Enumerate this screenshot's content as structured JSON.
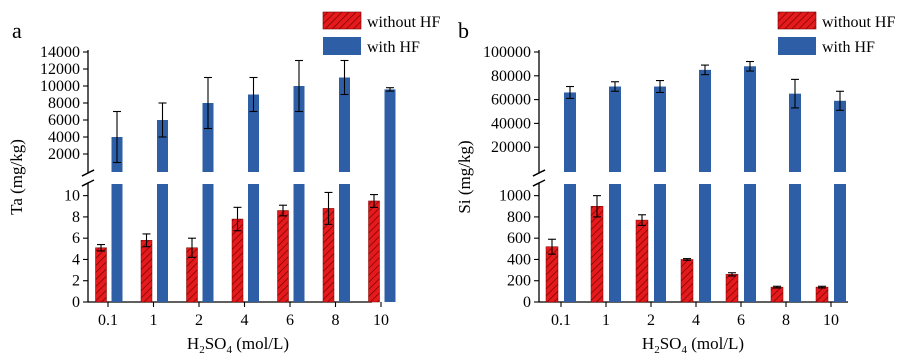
{
  "colors": {
    "with_hf": "#2e5fa6",
    "without_hf": "#e41a1c",
    "hatch": "#7a0000",
    "axis": "#000000"
  },
  "chart_data": [
    {
      "panel_label": "a",
      "type": "bar",
      "categories": [
        "0.1",
        "1",
        "2",
        "4",
        "6",
        "8",
        "10"
      ],
      "xlabel_parts": [
        "H",
        "2",
        "SO",
        "4",
        " (mol/L)"
      ],
      "ylabel": "Ta (mg/kg)",
      "legend_position": "top-right",
      "axis_break": true,
      "lower": {
        "ylim": [
          0,
          11
        ],
        "ticks": [
          "0",
          "2",
          "4",
          "6",
          "8",
          "10"
        ]
      },
      "upper": {
        "ylim": [
          0,
          14000
        ],
        "ticks": [
          "2000",
          "4000",
          "6000",
          "8000",
          "10000",
          "12000",
          "14000"
        ]
      },
      "series": [
        {
          "name": "without HF",
          "segment": "lower",
          "values": [
            5.1,
            5.8,
            5.1,
            7.8,
            8.6,
            8.8,
            9.5
          ],
          "errors": [
            0.3,
            0.6,
            0.9,
            1.1,
            0.5,
            1.5,
            0.6
          ]
        },
        {
          "name": "with HF",
          "segment": "upper",
          "values": [
            4000,
            6000,
            8000,
            9000,
            10000,
            11000,
            9600
          ],
          "errors": [
            3000,
            2000,
            3000,
            2000,
            3000,
            2000,
            200
          ]
        }
      ]
    },
    {
      "panel_label": "b",
      "type": "bar",
      "categories": [
        "0.1",
        "1",
        "2",
        "4",
        "6",
        "8",
        "10"
      ],
      "xlabel_parts": [
        "H",
        "2",
        "SO",
        "4",
        " (mol/L)"
      ],
      "ylabel": "Si (mg/kg)",
      "legend_position": "top-right",
      "axis_break": true,
      "lower": {
        "ylim": [
          0,
          1100
        ],
        "ticks": [
          "0",
          "200",
          "400",
          "600",
          "800",
          "1000"
        ]
      },
      "upper": {
        "ylim": [
          0,
          100000
        ],
        "ticks": [
          "20000",
          "40000",
          "60000",
          "80000",
          "100000"
        ]
      },
      "series": [
        {
          "name": "without HF",
          "segment": "lower",
          "values": [
            520,
            900,
            770,
            400,
            260,
            140,
            140
          ],
          "errors": [
            70,
            100,
            50,
            8,
            15,
            8,
            8
          ]
        },
        {
          "name": "with HF",
          "segment": "upper",
          "values": [
            66000,
            71000,
            71000,
            85000,
            88000,
            65000,
            59000
          ],
          "errors": [
            5000,
            4000,
            5000,
            4000,
            4000,
            12000,
            8000
          ]
        }
      ]
    }
  ]
}
